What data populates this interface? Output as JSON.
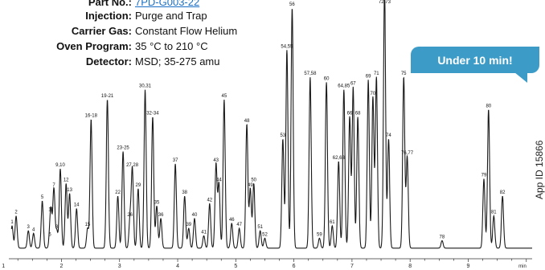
{
  "info": [
    {
      "label": "Part No.:",
      "value": "7PD-G003-22",
      "link": true
    },
    {
      "label": "Injection:",
      "value": "Purge and Trap"
    },
    {
      "label": "Carrier Gas:",
      "value": "Constant Flow Helium"
    },
    {
      "label": "Oven Program:",
      "value": "35 °C to 210 °C"
    },
    {
      "label": "Detector:",
      "value": "MSD; 35-275 amu"
    }
  ],
  "badge": "Under 10 min!",
  "app_id": "App ID 15866",
  "colors": {
    "trace": "#1a1a1a",
    "badge": "#3d9cc7",
    "link": "#1a6fc4"
  },
  "chart_data": {
    "type": "line",
    "xlabel": "min",
    "xlim": [
      1.15,
      10.1
    ],
    "ylim": [
      0,
      100
    ],
    "x_ticks": [
      "1",
      "2",
      "3",
      "4",
      "5",
      "6",
      "7",
      "8",
      "9"
    ],
    "x_tick_values": [
      1,
      2,
      3,
      4,
      5,
      6,
      7,
      8,
      9
    ],
    "baseline": 3,
    "peaks": [
      {
        "label": "1",
        "x": 1.15,
        "y": 12
      },
      {
        "label": "2",
        "x": 1.22,
        "y": 16
      },
      {
        "label": "3",
        "x": 1.43,
        "y": 10
      },
      {
        "label": "4",
        "x": 1.52,
        "y": 9
      },
      {
        "label": "5",
        "x": 1.67,
        "y": 22
      },
      {
        "label": "6",
        "x": 1.8,
        "y": 7
      },
      {
        "label": "11",
        "x": 1.82,
        "y": 17
      },
      {
        "label": "7",
        "x": 1.87,
        "y": 27
      },
      {
        "label": "8",
        "x": 1.92,
        "y": 10
      },
      {
        "label": "9,10",
        "x": 1.98,
        "y": 35
      },
      {
        "label": "12",
        "x": 2.08,
        "y": 29
      },
      {
        "label": "13",
        "x": 2.14,
        "y": 25
      },
      {
        "label": "14",
        "x": 2.26,
        "y": 19
      },
      {
        "label": "15",
        "x": 2.45,
        "y": 11
      },
      {
        "label": "16-18",
        "x": 2.51,
        "y": 55
      },
      {
        "label": "19-21",
        "x": 2.79,
        "y": 63
      },
      {
        "label": "22",
        "x": 2.97,
        "y": 24
      },
      {
        "label": "23-25",
        "x": 3.06,
        "y": 42
      },
      {
        "label": "26",
        "x": 3.18,
        "y": 15
      },
      {
        "label": "27,28",
        "x": 3.22,
        "y": 35
      },
      {
        "label": "29",
        "x": 3.32,
        "y": 27
      },
      {
        "label": "30,31",
        "x": 3.44,
        "y": 67
      },
      {
        "label": "32-34",
        "x": 3.57,
        "y": 56
      },
      {
        "label": "35",
        "x": 3.64,
        "y": 20
      },
      {
        "label": "36",
        "x": 3.71,
        "y": 15
      },
      {
        "label": "37",
        "x": 3.96,
        "y": 37
      },
      {
        "label": "38",
        "x": 4.12,
        "y": 24
      },
      {
        "label": "39",
        "x": 4.19,
        "y": 11
      },
      {
        "label": "40",
        "x": 4.29,
        "y": 15
      },
      {
        "label": "41",
        "x": 4.45,
        "y": 8
      },
      {
        "label": "42",
        "x": 4.55,
        "y": 21
      },
      {
        "label": "43",
        "x": 4.66,
        "y": 37
      },
      {
        "label": "44",
        "x": 4.71,
        "y": 29
      },
      {
        "label": "45",
        "x": 4.8,
        "y": 63
      },
      {
        "label": "46",
        "x": 4.93,
        "y": 13
      },
      {
        "label": "47",
        "x": 5.06,
        "y": 11
      },
      {
        "label": "48",
        "x": 5.19,
        "y": 53
      },
      {
        "label": "49",
        "x": 5.25,
        "y": 27
      },
      {
        "label": "50",
        "x": 5.31,
        "y": 29
      },
      {
        "label": "51",
        "x": 5.42,
        "y": 10
      },
      {
        "label": "52",
        "x": 5.5,
        "y": 7
      },
      {
        "label": "53",
        "x": 5.81,
        "y": 47
      },
      {
        "label": "54,55",
        "x": 5.88,
        "y": 83
      },
      {
        "label": "56",
        "x": 5.97,
        "y": 100
      },
      {
        "label": "57,58",
        "x": 6.28,
        "y": 72
      },
      {
        "label": "59",
        "x": 6.44,
        "y": 7
      },
      {
        "label": "60",
        "x": 6.56,
        "y": 70
      },
      {
        "label": "61",
        "x": 6.66,
        "y": 12
      },
      {
        "label": "62,63",
        "x": 6.77,
        "y": 38
      },
      {
        "label": "64,85",
        "x": 6.86,
        "y": 67
      },
      {
        "label": "66",
        "x": 6.96,
        "y": 56
      },
      {
        "label": "67",
        "x": 7.02,
        "y": 68
      },
      {
        "label": "68",
        "x": 7.1,
        "y": 56
      },
      {
        "label": "69",
        "x": 7.28,
        "y": 71
      },
      {
        "label": "70",
        "x": 7.36,
        "y": 64
      },
      {
        "label": "71",
        "x": 7.42,
        "y": 72
      },
      {
        "label": "72,73",
        "x": 7.56,
        "y": 108
      },
      {
        "label": "74",
        "x": 7.63,
        "y": 47
      },
      {
        "label": "75",
        "x": 7.89,
        "y": 72
      },
      {
        "label": "76,77",
        "x": 7.95,
        "y": 40
      },
      {
        "label": "78",
        "x": 8.55,
        "y": 6
      },
      {
        "label": "79",
        "x": 9.27,
        "y": 31
      },
      {
        "label": "80",
        "x": 9.35,
        "y": 59
      },
      {
        "label": "81",
        "x": 9.44,
        "y": 16
      },
      {
        "label": "82",
        "x": 9.59,
        "y": 24
      }
    ]
  }
}
